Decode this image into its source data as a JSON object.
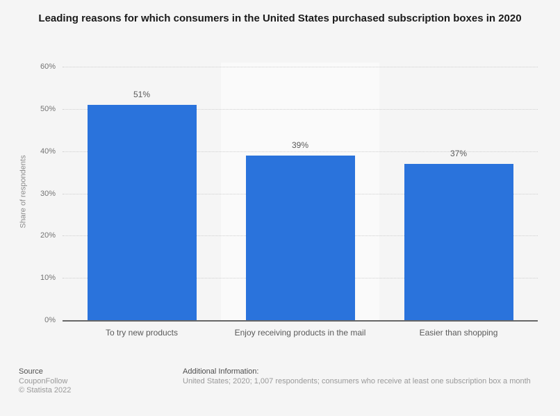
{
  "title": "Leading reasons for which consumers in the United States purchased subscription boxes in 2020",
  "chart_data": {
    "type": "bar",
    "categories": [
      "To try new products",
      "Enjoy receiving products in the mail",
      "Easier than shopping"
    ],
    "values": [
      51,
      39,
      37
    ],
    "value_labels": [
      "51%",
      "39%",
      "37%"
    ],
    "title": "Leading reasons for which consumers in the United States purchased subscription boxes in 2020",
    "xlabel": "",
    "ylabel": "Share of respondents",
    "ylim": [
      0,
      60
    ],
    "yticks": [
      0,
      10,
      20,
      30,
      40,
      50,
      60
    ],
    "ytick_labels": [
      "0%",
      "10%",
      "20%",
      "30%",
      "40%",
      "50%",
      "60%"
    ],
    "grid": "horizontal-dotted",
    "legend": "none",
    "bar_color": "#2a73dc"
  },
  "colors": {
    "bar": "#2a73dc",
    "background": "#f5f5f5",
    "band_light": "#fafafa",
    "gridline": "#cfcfcf",
    "axis_line": "#666666"
  },
  "footer": {
    "source_label": "Source",
    "source_name": "CouponFollow",
    "copyright": "© Statista 2022",
    "additional_info_label": "Additional Information:",
    "additional_info": "United States; 2020; 1,007 respondents; consumers who receive at least one subscription box a month"
  }
}
